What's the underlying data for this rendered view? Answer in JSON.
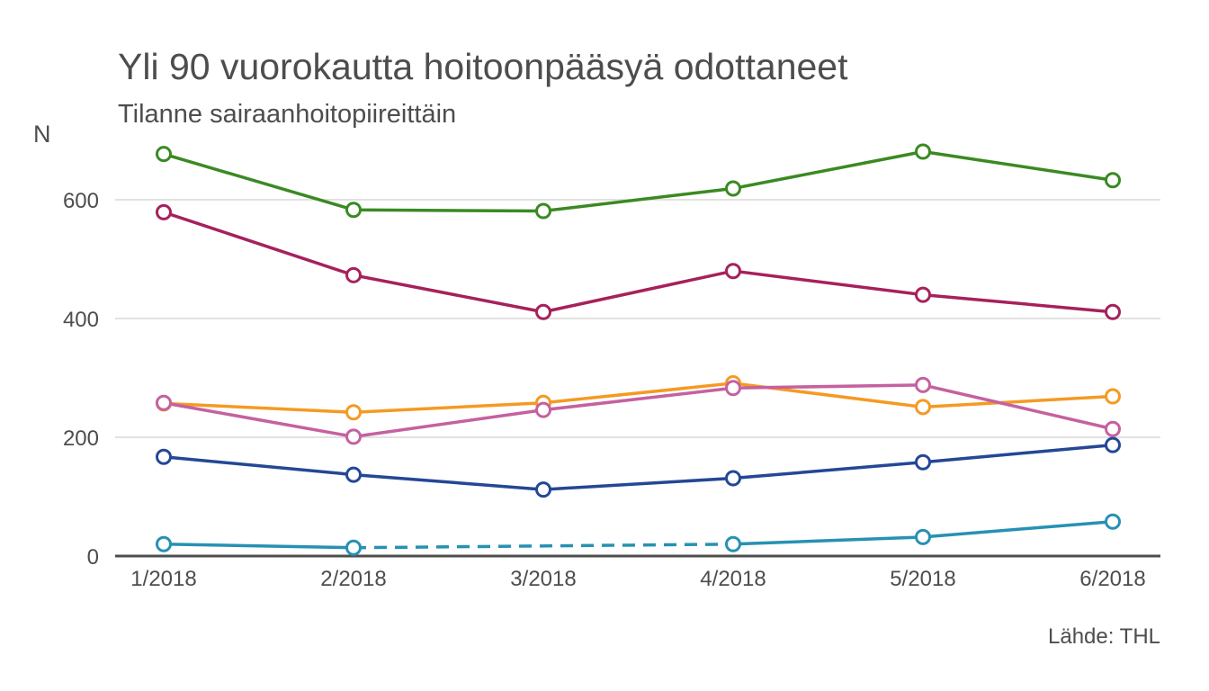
{
  "chart_data": {
    "type": "line",
    "title": "Yli 90 vuorokautta hoitoonpääsyä odottaneet",
    "subtitle": "Tilanne sairaanhoitopiireittäin",
    "ylabel": "N",
    "xlabel": "",
    "source": "Lähde: THL",
    "categories": [
      "1/2018",
      "2/2018",
      "3/2018",
      "4/2018",
      "5/2018",
      "6/2018"
    ],
    "ylim": [
      0,
      700
    ],
    "yticks": [
      0,
      200,
      400,
      600
    ],
    "grid": true,
    "legend": "none",
    "series": [
      {
        "color": "#3a8a23",
        "values": [
          677,
          583,
          581,
          619,
          681,
          633
        ],
        "dashed_segments": []
      },
      {
        "color": "#a6215b",
        "values": [
          579,
          473,
          411,
          480,
          440,
          411
        ],
        "dashed_segments": []
      },
      {
        "color": "#f49a23",
        "values": [
          257,
          242,
          258,
          291,
          251,
          269
        ],
        "dashed_segments": []
      },
      {
        "color": "#c5619f",
        "values": [
          258,
          201,
          246,
          283,
          288,
          214
        ],
        "dashed_segments": []
      },
      {
        "color": "#244796",
        "values": [
          167,
          137,
          112,
          131,
          158,
          187
        ],
        "dashed_segments": []
      },
      {
        "color": "#2691b3",
        "values": [
          20,
          14,
          null,
          20,
          32,
          58
        ],
        "dashed_segments": [
          [
            1,
            3
          ]
        ]
      }
    ]
  }
}
